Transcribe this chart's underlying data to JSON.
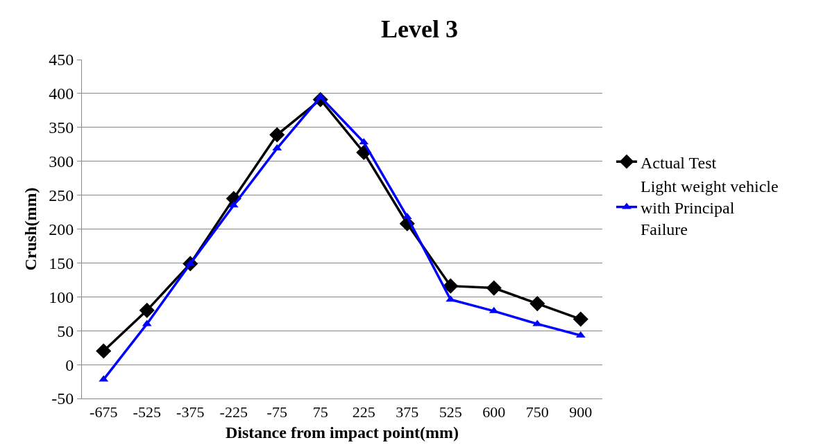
{
  "chart_data": {
    "type": "line",
    "title": "Level 3",
    "xlabel": "Distance from impact point(mm)",
    "ylabel": "Crush(mm)",
    "categories": [
      "-675",
      "-525",
      "-375",
      "-225",
      "-75",
      "75",
      "225",
      "375",
      "525",
      "600",
      "750",
      "900"
    ],
    "series": [
      {
        "name": "Actual Test",
        "color": "#000000",
        "marker": "diamond",
        "values": [
          20,
          80,
          149,
          245,
          339,
          391,
          313,
          208,
          116,
          113,
          90,
          67
        ]
      },
      {
        "name": "Light weight vehicle with Principal Failure",
        "color": "#0000ff",
        "marker": "triangle",
        "values": [
          -22,
          60,
          149,
          235,
          319,
          395,
          328,
          218,
          96,
          79,
          60,
          43
        ]
      }
    ],
    "ylim": [
      -50,
      450
    ],
    "yticks": [
      -50,
      0,
      50,
      100,
      150,
      200,
      250,
      300,
      350,
      400,
      450
    ],
    "grid": "y",
    "legend": "right",
    "line_style": "solid"
  }
}
